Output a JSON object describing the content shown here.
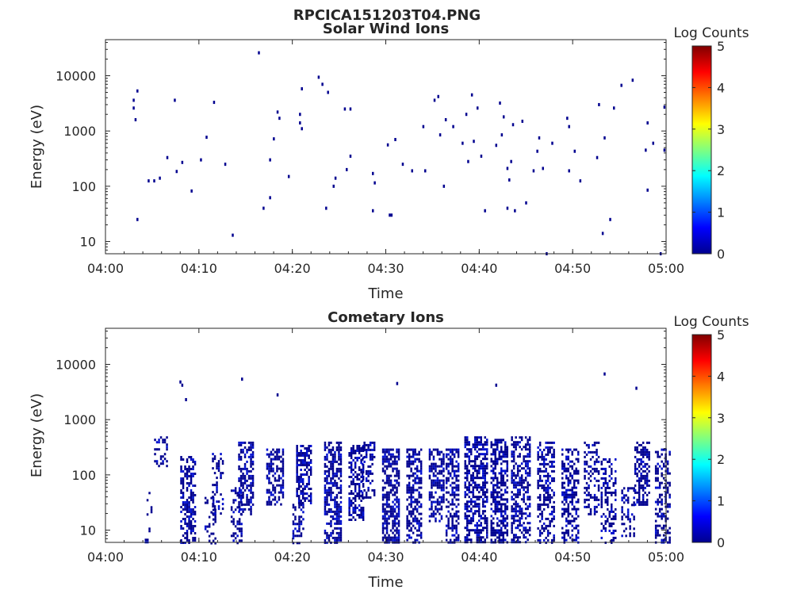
{
  "figure": {
    "title": "RPCICA151203T04.PNG"
  },
  "chart_data": [
    {
      "type": "heatmap",
      "title": "Solar Wind Ions",
      "xlabel": "Time",
      "ylabel": "Energy (eV)",
      "x_ticks": [
        "04:00",
        "04:10",
        "04:20",
        "04:30",
        "04:40",
        "04:50",
        "05:00"
      ],
      "x_range_minutes": [
        0,
        60
      ],
      "y_scale": "log",
      "y_ticks": [
        "10",
        "100",
        "1000",
        "10000"
      ],
      "y_range": [
        6,
        45000
      ],
      "colorbar": {
        "title": "Log Counts",
        "ticks": [
          "0",
          "1",
          "2",
          "3",
          "4",
          "5"
        ],
        "range": [
          0,
          5
        ],
        "colormap": "jet"
      },
      "points": [
        [
          3.0,
          3600
        ],
        [
          3.0,
          2600
        ],
        [
          3.2,
          1600
        ],
        [
          3.4,
          5300
        ],
        [
          3.4,
          25
        ],
        [
          4.6,
          125
        ],
        [
          5.2,
          125
        ],
        [
          5.8,
          140
        ],
        [
          6.6,
          330
        ],
        [
          7.4,
          3600
        ],
        [
          7.6,
          185
        ],
        [
          8.2,
          270
        ],
        [
          9.2,
          82
        ],
        [
          10.2,
          300
        ],
        [
          10.8,
          770
        ],
        [
          11.6,
          3300
        ],
        [
          12.8,
          250
        ],
        [
          13.6,
          13
        ],
        [
          16.4,
          26000
        ],
        [
          16.9,
          40
        ],
        [
          17.6,
          300
        ],
        [
          17.6,
          62
        ],
        [
          18.0,
          720
        ],
        [
          18.4,
          2200
        ],
        [
          18.6,
          1700
        ],
        [
          19.6,
          150
        ],
        [
          20.8,
          2000
        ],
        [
          20.8,
          1400
        ],
        [
          21.0,
          5800
        ],
        [
          21.0,
          1100
        ],
        [
          22.8,
          9400
        ],
        [
          23.2,
          7000
        ],
        [
          23.8,
          5000
        ],
        [
          23.6,
          40
        ],
        [
          24.4,
          100
        ],
        [
          24.6,
          140
        ],
        [
          25.6,
          2500
        ],
        [
          25.8,
          200
        ],
        [
          26.2,
          2500
        ],
        [
          26.2,
          350
        ],
        [
          28.6,
          170
        ],
        [
          28.8,
          115
        ],
        [
          28.6,
          36
        ],
        [
          30.2,
          560
        ],
        [
          30.4,
          30
        ],
        [
          30.6,
          30
        ],
        [
          31.0,
          700
        ],
        [
          31.8,
          250
        ],
        [
          32.8,
          190
        ],
        [
          34.0,
          1200
        ],
        [
          34.2,
          190
        ],
        [
          35.2,
          3600
        ],
        [
          35.6,
          4200
        ],
        [
          35.8,
          850
        ],
        [
          36.2,
          100
        ],
        [
          36.4,
          1600
        ],
        [
          37.2,
          1200
        ],
        [
          38.2,
          600
        ],
        [
          38.6,
          2000
        ],
        [
          38.8,
          280
        ],
        [
          39.2,
          4500
        ],
        [
          39.4,
          650
        ],
        [
          39.8,
          2600
        ],
        [
          40.2,
          350
        ],
        [
          40.6,
          36
        ],
        [
          41.8,
          550
        ],
        [
          42.2,
          3200
        ],
        [
          42.4,
          850
        ],
        [
          42.6,
          1800
        ],
        [
          43.0,
          40
        ],
        [
          43.0,
          210
        ],
        [
          43.2,
          130
        ],
        [
          43.4,
          280
        ],
        [
          43.6,
          1300
        ],
        [
          43.8,
          36
        ],
        [
          44.6,
          1500
        ],
        [
          45.0,
          50
        ],
        [
          45.8,
          190
        ],
        [
          46.2,
          430
        ],
        [
          46.4,
          750
        ],
        [
          46.8,
          210
        ],
        [
          47.2,
          6
        ],
        [
          47.8,
          600
        ],
        [
          49.4,
          1700
        ],
        [
          49.6,
          1200
        ],
        [
          49.6,
          190
        ],
        [
          50.2,
          430
        ],
        [
          50.8,
          125
        ],
        [
          52.6,
          330
        ],
        [
          52.8,
          3000
        ],
        [
          53.2,
          14
        ],
        [
          53.4,
          750
        ],
        [
          54.0,
          25
        ],
        [
          54.4,
          2600
        ],
        [
          55.2,
          6700
        ],
        [
          56.4,
          8300
        ],
        [
          57.8,
          450
        ],
        [
          58.0,
          1400
        ],
        [
          58.0,
          85
        ],
        [
          58.6,
          600
        ],
        [
          59.4,
          6
        ],
        [
          59.8,
          2700
        ],
        [
          59.8,
          450
        ]
      ]
    },
    {
      "type": "heatmap",
      "title": "Cometary Ions",
      "xlabel": "Time",
      "ylabel": "Energy (eV)",
      "x_ticks": [
        "04:00",
        "04:10",
        "04:20",
        "04:30",
        "04:40",
        "04:50",
        "05:00"
      ],
      "x_range_minutes": [
        0,
        60
      ],
      "y_scale": "log",
      "y_ticks": [
        "10",
        "100",
        "1000",
        "10000"
      ],
      "y_range": [
        6,
        45000
      ],
      "colorbar": {
        "title": "Log Counts",
        "ticks": [
          "0",
          "1",
          "2",
          "3",
          "4",
          "5"
        ],
        "range": [
          0,
          5
        ],
        "colormap": "jet"
      },
      "points": [
        [
          8.0,
          4800
        ],
        [
          8.2,
          4200
        ],
        [
          8.6,
          2300
        ],
        [
          14.6,
          5400
        ],
        [
          18.4,
          2800
        ],
        [
          31.2,
          4500
        ],
        [
          41.8,
          4200
        ],
        [
          53.4,
          6700
        ],
        [
          56.8,
          3700
        ]
      ],
      "bursts": [
        {
          "t": 4.2,
          "w": 0.4,
          "e_min": 6,
          "e_max": 7,
          "density": 0.9
        },
        {
          "t": 4.4,
          "w": 0.6,
          "e_min": 10,
          "e_max": 60,
          "density": 0.2
        },
        {
          "t": 5.2,
          "w": 1.4,
          "e_min": 150,
          "e_max": 500,
          "density": 0.35
        },
        {
          "t": 8.0,
          "w": 1.6,
          "e_min": 6,
          "e_max": 220,
          "density": 0.5
        },
        {
          "t": 10.6,
          "w": 1.2,
          "e_min": 6,
          "e_max": 40,
          "density": 0.25
        },
        {
          "t": 11.4,
          "w": 1.2,
          "e_min": 20,
          "e_max": 250,
          "density": 0.3
        },
        {
          "t": 13.4,
          "w": 1.2,
          "e_min": 6,
          "e_max": 60,
          "density": 0.35
        },
        {
          "t": 14.2,
          "w": 1.6,
          "e_min": 20,
          "e_max": 400,
          "density": 0.55
        },
        {
          "t": 17.2,
          "w": 1.8,
          "e_min": 30,
          "e_max": 300,
          "density": 0.55
        },
        {
          "t": 20.0,
          "w": 1.2,
          "e_min": 6,
          "e_max": 30,
          "density": 0.4
        },
        {
          "t": 20.4,
          "w": 1.6,
          "e_min": 30,
          "e_max": 350,
          "density": 0.65
        },
        {
          "t": 23.4,
          "w": 1.8,
          "e_min": 6,
          "e_max": 400,
          "density": 0.6
        },
        {
          "t": 26.0,
          "w": 1.6,
          "e_min": 15,
          "e_max": 350,
          "density": 0.55
        },
        {
          "t": 27.4,
          "w": 1.4,
          "e_min": 40,
          "e_max": 400,
          "density": 0.45
        },
        {
          "t": 29.6,
          "w": 1.8,
          "e_min": 6,
          "e_max": 300,
          "density": 0.65
        },
        {
          "t": 32.2,
          "w": 1.6,
          "e_min": 6,
          "e_max": 300,
          "density": 0.55
        },
        {
          "t": 34.6,
          "w": 1.6,
          "e_min": 15,
          "e_max": 300,
          "density": 0.55
        },
        {
          "t": 36.4,
          "w": 1.4,
          "e_min": 6,
          "e_max": 300,
          "density": 0.5
        },
        {
          "t": 38.4,
          "w": 2.4,
          "e_min": 6,
          "e_max": 500,
          "density": 0.6
        },
        {
          "t": 41.2,
          "w": 1.8,
          "e_min": 6,
          "e_max": 450,
          "density": 0.6
        },
        {
          "t": 43.4,
          "w": 2.0,
          "e_min": 6,
          "e_max": 500,
          "density": 0.55
        },
        {
          "t": 46.2,
          "w": 1.8,
          "e_min": 6,
          "e_max": 400,
          "density": 0.5
        },
        {
          "t": 48.8,
          "w": 1.8,
          "e_min": 6,
          "e_max": 300,
          "density": 0.45
        },
        {
          "t": 51.2,
          "w": 1.6,
          "e_min": 20,
          "e_max": 400,
          "density": 0.4
        },
        {
          "t": 53.0,
          "w": 1.6,
          "e_min": 6,
          "e_max": 200,
          "density": 0.4
        },
        {
          "t": 55.2,
          "w": 1.4,
          "e_min": 8,
          "e_max": 60,
          "density": 0.35
        },
        {
          "t": 56.6,
          "w": 1.6,
          "e_min": 30,
          "e_max": 400,
          "density": 0.5
        },
        {
          "t": 58.8,
          "w": 1.6,
          "e_min": 6,
          "e_max": 300,
          "density": 0.45
        }
      ]
    }
  ]
}
